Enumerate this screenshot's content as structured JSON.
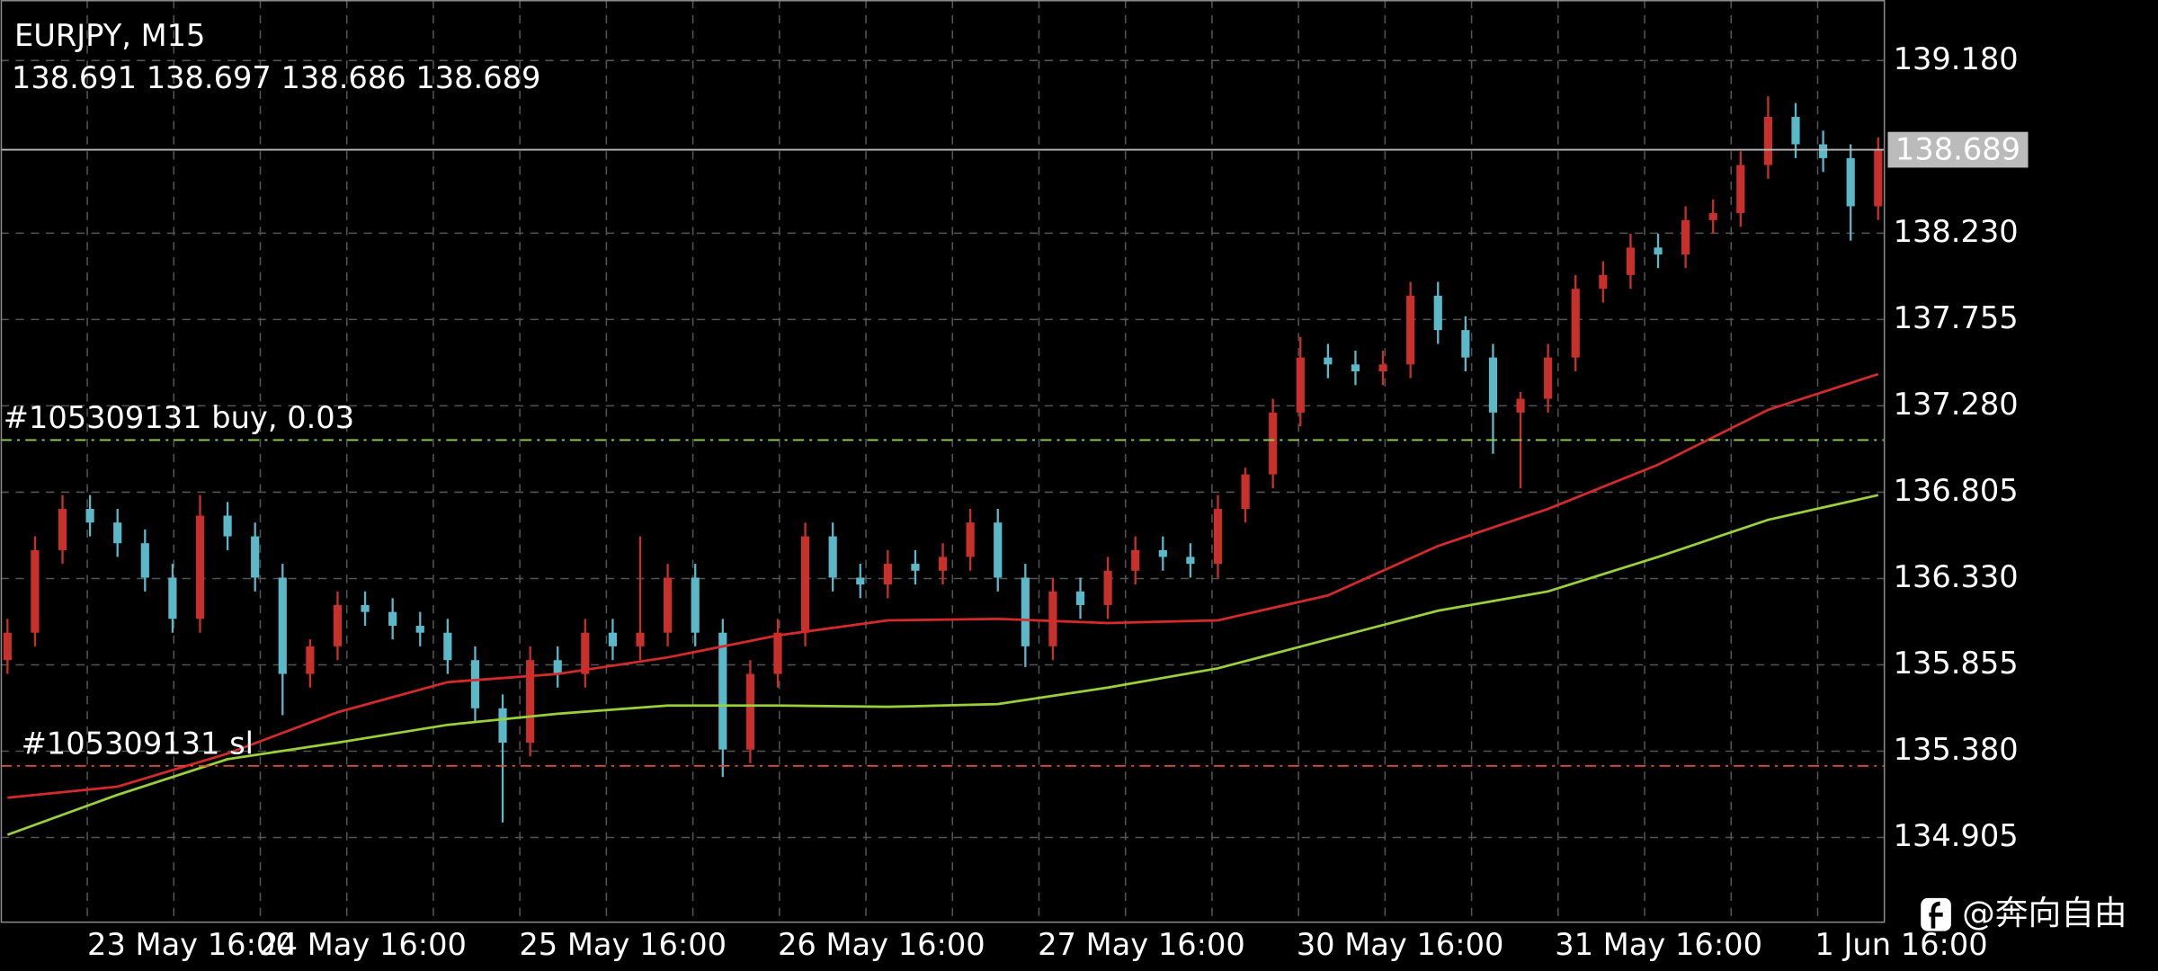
{
  "symbol": "EURJPY, M15",
  "quote": "138.691 138.697 138.686 138.689",
  "watermark": "@奔向自由",
  "chart_data": {
    "type": "candlestick",
    "up_color": "#c8302c",
    "down_color": "#5ab8c8",
    "open": [
      135.881,
      136.032,
      136.486,
      136.713,
      136.638,
      136.524,
      136.335,
      136.108,
      136.676,
      136.562,
      136.335,
      135.805,
      135.957,
      136.184,
      136.146,
      136.07,
      136.032,
      135.881,
      135.616,
      135.427,
      135.881,
      135.805,
      136.032,
      135.957,
      136.032,
      136.335,
      136.032,
      135.389,
      135.805,
      136.032,
      136.562,
      136.335,
      136.297,
      136.411,
      136.373,
      136.449,
      136.638,
      136.335,
      135.957,
      136.259,
      136.184,
      136.373,
      136.486,
      136.449,
      136.411,
      136.713,
      136.903,
      137.243,
      137.546,
      137.508,
      137.47,
      137.508,
      137.886,
      137.697,
      137.546,
      137.243,
      137.319,
      137.546,
      137.924,
      138.0,
      138.151,
      138.113,
      138.302,
      138.34,
      138.605,
      138.87,
      138.719,
      138.643,
      138.378
    ],
    "high": [
      136.108,
      136.562,
      136.789,
      136.789,
      136.713,
      136.6,
      136.411,
      136.789,
      136.751,
      136.638,
      136.411,
      135.995,
      136.259,
      136.259,
      136.222,
      136.146,
      136.108,
      135.957,
      135.692,
      135.957,
      135.957,
      136.108,
      136.108,
      136.562,
      136.411,
      136.411,
      136.108,
      135.881,
      136.108,
      136.638,
      136.638,
      136.411,
      136.486,
      136.486,
      136.524,
      136.713,
      136.713,
      136.411,
      136.335,
      136.335,
      136.449,
      136.562,
      136.562,
      136.524,
      136.789,
      136.94,
      137.319,
      137.659,
      137.621,
      137.584,
      137.584,
      137.962,
      137.962,
      137.773,
      137.621,
      137.357,
      137.621,
      138.0,
      138.075,
      138.227,
      138.227,
      138.378,
      138.416,
      138.681,
      138.983,
      138.946,
      138.794,
      138.719,
      138.756
    ],
    "low": [
      135.805,
      135.957,
      136.411,
      136.562,
      136.449,
      136.259,
      136.032,
      136.032,
      136.486,
      136.259,
      135.578,
      135.73,
      135.881,
      136.07,
      135.995,
      135.957,
      135.805,
      135.541,
      134.988,
      135.351,
      135.73,
      135.73,
      135.881,
      135.881,
      135.957,
      135.957,
      135.238,
      135.314,
      135.73,
      135.957,
      136.259,
      136.222,
      136.222,
      136.297,
      136.297,
      136.373,
      136.259,
      135.843,
      135.881,
      136.108,
      136.108,
      136.297,
      136.373,
      136.335,
      136.335,
      136.638,
      136.827,
      137.167,
      137.432,
      137.394,
      137.394,
      137.432,
      137.621,
      137.47,
      137.016,
      136.827,
      137.243,
      137.47,
      137.848,
      137.924,
      138.038,
      138.038,
      138.227,
      138.265,
      138.529,
      138.643,
      138.567,
      138.189,
      138.302
    ],
    "close": [
      136.032,
      136.486,
      136.713,
      136.638,
      136.524,
      136.335,
      136.108,
      136.676,
      136.562,
      136.335,
      135.805,
      135.957,
      136.184,
      136.146,
      136.07,
      136.032,
      135.881,
      135.616,
      135.427,
      135.881,
      135.805,
      136.032,
      135.957,
      136.032,
      136.335,
      136.032,
      135.389,
      135.805,
      136.032,
      136.562,
      136.335,
      136.297,
      136.411,
      136.373,
      136.449,
      136.638,
      136.335,
      135.957,
      136.259,
      136.184,
      136.373,
      136.486,
      136.449,
      136.411,
      136.713,
      136.903,
      137.243,
      137.546,
      137.508,
      137.47,
      137.508,
      137.886,
      137.697,
      137.546,
      137.243,
      137.319,
      137.546,
      137.924,
      138.0,
      138.151,
      138.113,
      138.302,
      138.34,
      138.605,
      138.87,
      138.719,
      138.643,
      138.378,
      138.689
    ],
    "ma": [
      {
        "color": "#d42a2a",
        "x": [
          0,
          4,
          8,
          12,
          16,
          20,
          24,
          28,
          32,
          36,
          40,
          44,
          48,
          52,
          56,
          60,
          64,
          68
        ],
        "values": [
          135.124,
          135.185,
          135.367,
          135.594,
          135.76,
          135.805,
          135.896,
          136.017,
          136.1,
          136.108,
          136.085,
          136.1,
          136.237,
          136.509,
          136.713,
          136.956,
          137.258,
          137.455
        ]
      },
      {
        "color": "#9ad03a",
        "x": [
          0,
          4,
          8,
          12,
          16,
          20,
          24,
          28,
          32,
          36,
          40,
          44,
          48,
          52,
          56,
          60,
          64,
          68
        ],
        "values": [
          134.92,
          135.14,
          135.336,
          135.427,
          135.525,
          135.586,
          135.631,
          135.631,
          135.624,
          135.639,
          135.73,
          135.836,
          135.995,
          136.153,
          136.259,
          136.449,
          136.653,
          136.789
        ]
      }
    ],
    "price_line": {
      "value": 138.689,
      "color": "#bbbbbb"
    },
    "orders": [
      {
        "label": "#105309131 buy, 0.03",
        "value": 137.092,
        "color": "#8fd14f"
      },
      {
        "label": "#105309131 sl",
        "value": 135.299,
        "color": "#e04a3a"
      }
    ],
    "xlim": [
      -0.25,
      68.2
    ],
    "xticks": [
      {
        "value": 2.9,
        "label": "23 May 16:00"
      },
      {
        "value": 9.15,
        "label": "24 May 16:00"
      },
      {
        "value": 18.6,
        "label": "25 May 16:00"
      },
      {
        "value": 28,
        "label": "26 May 16:00"
      },
      {
        "value": 37.45,
        "label": "27 May 16:00"
      },
      {
        "value": 46.85,
        "label": "30 May 16:00"
      },
      {
        "value": 56.25,
        "label": "31 May 16:00"
      },
      {
        "value": 65.7,
        "label": "1 Jun 16:00"
      }
    ],
    "ylim": [
      134.443,
      139.513
    ],
    "yticks": [
      {
        "value": 139.18,
        "label": "139.180"
      },
      {
        "value": 138.23,
        "label": "138.230"
      },
      137.755,
      {
        "value": 137.28,
        "label": "137.280"
      },
      136.805,
      {
        "value": 136.33,
        "label": "136.330"
      },
      135.855,
      {
        "value": 135.38,
        "label": "135.380"
      },
      134.905
    ],
    "grid": true
  }
}
